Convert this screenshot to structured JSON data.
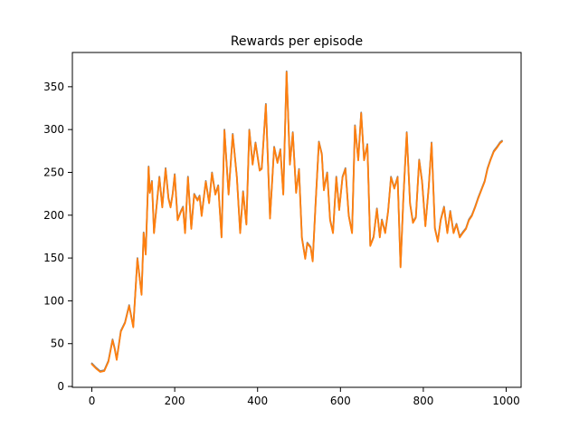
{
  "chart_data": {
    "type": "line",
    "title": "Rewards per episode",
    "xlabel": "",
    "ylabel": "",
    "xlim": [
      -47,
      1036
    ],
    "ylim": [
      -1,
      390
    ],
    "x_ticks": [
      0,
      200,
      400,
      600,
      800,
      1000
    ],
    "y_ticks": [
      0,
      50,
      100,
      150,
      200,
      250,
      300,
      350
    ],
    "grid": false,
    "legend": "none",
    "series": [
      {
        "color": "#7f7f7f",
        "x": [
          0,
          10,
          20,
          30,
          40,
          50,
          55,
          60,
          70,
          80,
          90,
          100,
          110,
          120,
          125,
          130,
          137,
          140,
          145,
          150,
          157,
          163,
          170,
          178,
          185,
          190,
          195,
          200,
          207,
          215,
          220,
          225,
          232,
          240,
          247,
          255,
          260,
          265,
          275,
          283,
          290,
          298,
          305,
          313,
          320,
          330,
          340,
          350,
          358,
          365,
          373,
          380,
          388,
          395,
          405,
          410,
          420,
          430,
          440,
          448,
          455,
          462,
          470,
          478,
          485,
          493,
          500,
          507,
          515,
          520,
          528,
          533,
          540,
          548,
          555,
          560,
          568,
          575,
          582,
          590,
          597,
          605,
          612,
          620,
          628,
          635,
          643,
          650,
          657,
          665,
          672,
          680,
          688,
          695,
          700,
          708,
          715,
          722,
          730,
          738,
          745,
          752,
          760,
          768,
          775,
          782,
          790,
          797,
          805,
          813,
          820,
          828,
          835,
          842,
          850,
          858,
          865,
          873,
          880,
          888,
          895,
          903,
          910,
          917,
          925,
          932,
          940,
          948,
          955,
          962,
          970,
          978,
          985,
          990
        ],
        "values": [
          27,
          22,
          18,
          19,
          30,
          55,
          45,
          32,
          65,
          75,
          95,
          70,
          150,
          108,
          180,
          155,
          257,
          227,
          240,
          180,
          215,
          245,
          210,
          255,
          220,
          210,
          225,
          248,
          195,
          205,
          210,
          180,
          245,
          185,
          225,
          218,
          223,
          200,
          240,
          215,
          250,
          225,
          235,
          175,
          300,
          225,
          295,
          245,
          180,
          228,
          190,
          300,
          260,
          285,
          253,
          255,
          330,
          197,
          280,
          262,
          277,
          225,
          368,
          260,
          297,
          227,
          254,
          174,
          150,
          168,
          163,
          147,
          214,
          286,
          272,
          230,
          250,
          195,
          180,
          245,
          207,
          245,
          255,
          200,
          180,
          305,
          265,
          320,
          265,
          283,
          165,
          175,
          208,
          175,
          195,
          180,
          205,
          245,
          232,
          245,
          140,
          222,
          297,
          214,
          192,
          198,
          265,
          240,
          188,
          233,
          285,
          185,
          170,
          195,
          210,
          180,
          205,
          180,
          190,
          175,
          180,
          185,
          195,
          200,
          210,
          220,
          230,
          240,
          255,
          265,
          275,
          280,
          285,
          287
        ]
      },
      {
        "color": "#ff7f0e",
        "x": [
          0,
          10,
          20,
          30,
          40,
          50,
          55,
          60,
          70,
          80,
          90,
          100,
          110,
          120,
          125,
          130,
          137,
          140,
          145,
          150,
          157,
          163,
          170,
          178,
          185,
          190,
          195,
          200,
          207,
          215,
          220,
          225,
          232,
          240,
          247,
          255,
          260,
          265,
          275,
          283,
          290,
          298,
          305,
          313,
          320,
          330,
          340,
          350,
          358,
          365,
          373,
          380,
          388,
          395,
          405,
          410,
          420,
          430,
          440,
          448,
          455,
          462,
          470,
          478,
          485,
          493,
          500,
          507,
          515,
          520,
          528,
          533,
          540,
          548,
          555,
          560,
          568,
          575,
          582,
          590,
          597,
          605,
          612,
          620,
          628,
          635,
          643,
          650,
          657,
          665,
          672,
          680,
          688,
          695,
          700,
          708,
          715,
          722,
          730,
          738,
          745,
          752,
          760,
          768,
          775,
          782,
          790,
          797,
          805,
          813,
          820,
          828,
          835,
          842,
          850,
          858,
          865,
          873,
          880,
          888,
          895,
          903,
          910,
          917,
          925,
          932,
          940,
          948,
          955,
          962,
          970,
          978,
          985,
          990
        ],
        "values": [
          26,
          21,
          17,
          18,
          29,
          54,
          44,
          31,
          64,
          74,
          94,
          69,
          149,
          107,
          179,
          154,
          256,
          226,
          239,
          179,
          214,
          244,
          209,
          254,
          219,
          209,
          224,
          247,
          194,
          204,
          209,
          179,
          244,
          184,
          224,
          217,
          222,
          199,
          239,
          214,
          249,
          224,
          234,
          174,
          299,
          224,
          294,
          244,
          179,
          227,
          189,
          299,
          259,
          284,
          252,
          254,
          329,
          196,
          279,
          261,
          276,
          224,
          367,
          259,
          296,
          226,
          253,
          173,
          149,
          167,
          162,
          146,
          213,
          285,
          271,
          229,
          249,
          194,
          179,
          244,
          206,
          244,
          254,
          199,
          179,
          304,
          264,
          319,
          264,
          282,
          164,
          174,
          207,
          174,
          194,
          179,
          204,
          244,
          231,
          244,
          139,
          221,
          296,
          213,
          191,
          197,
          264,
          239,
          187,
          232,
          284,
          184,
          169,
          194,
          209,
          179,
          204,
          179,
          189,
          174,
          179,
          184,
          194,
          199,
          209,
          219,
          229,
          239,
          254,
          264,
          274,
          279,
          284,
          286
        ]
      }
    ]
  }
}
